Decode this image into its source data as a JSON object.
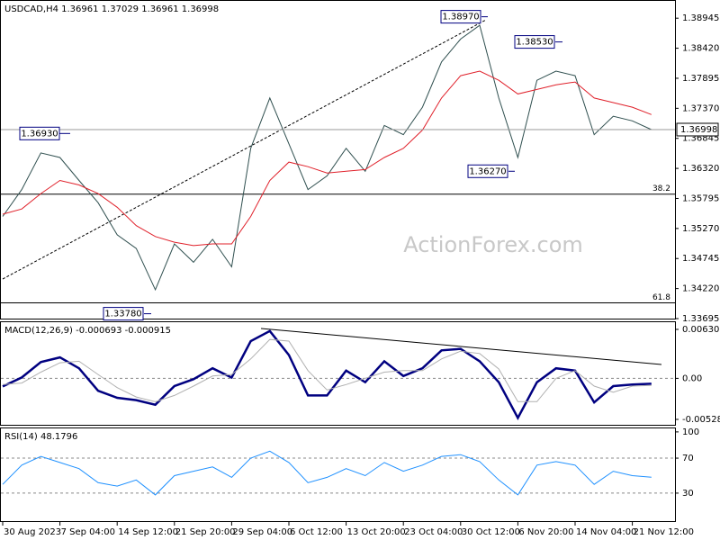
{
  "chart_data": [
    {
      "type": "line",
      "title": "USDCAD,H4",
      "ohlc": [
        1.36961,
        1.37029,
        1.36961,
        1.36998
      ],
      "watermark": "ActionForex.com",
      "series": [
        {
          "color": "#2f4f4f",
          "values": [
            1.3548,
            1.3595,
            1.3659,
            1.3651,
            1.3611,
            1.3572,
            1.3516,
            1.3492,
            1.342,
            1.35,
            1.3468,
            1.3508,
            1.346,
            1.3667,
            1.3755,
            1.3675,
            1.3595,
            1.3619,
            1.3667,
            1.3627,
            1.3707,
            1.3691,
            1.3739,
            1.3818,
            1.3858,
            1.3882,
            1.3755,
            1.3651,
            1.3786,
            1.3802,
            1.3794,
            1.3691,
            1.3723,
            1.3715,
            1.36998
          ]
        },
        {
          "color": "#e0202a",
          "values": [
            1.3552,
            1.3561,
            1.3588,
            1.3611,
            1.3603,
            1.3588,
            1.3564,
            1.3532,
            1.3513,
            1.3503,
            1.3497,
            1.35,
            1.35,
            1.3548,
            1.3611,
            1.3643,
            1.3635,
            1.3624,
            1.3627,
            1.363,
            1.3651,
            1.3667,
            1.3699,
            1.3755,
            1.3794,
            1.3802,
            1.3786,
            1.3762,
            1.377,
            1.3778,
            1.3783,
            1.3755,
            1.3747,
            1.3739,
            1.3726
          ]
        }
      ],
      "current_price": 1.36998,
      "annotations": [
        {
          "value": 1.3693,
          "label": "1.36930"
        },
        {
          "value": 1.3378,
          "label": "1.33780"
        },
        {
          "value": 1.3897,
          "label": "1.38970"
        },
        {
          "value": 1.3853,
          "label": "1.38530"
        },
        {
          "value": 1.3627,
          "label": "1.36270"
        }
      ],
      "fib_levels": [
        {
          "value": 1.3587,
          "label": "38.2"
        },
        {
          "value": 1.3397,
          "label": "61.8"
        }
      ],
      "ylim": [
        1.33695,
        1.39247
      ],
      "yticks": [
        1.38945,
        {
          "value": 1.3842,
          "label": "1.38420"
        },
        1.37895,
        {
          "value": 1.3737,
          "label": "1.37370"
        },
        1.36845,
        {
          "value": 1.3632,
          "label": "1.36320"
        },
        1.35795,
        {
          "value": 1.3527,
          "label": "1.35270"
        },
        1.34745,
        {
          "value": 1.3422,
          "label": "1.34220"
        },
        1.33695
      ]
    },
    {
      "type": "line",
      "title": "MACD(12,26,9)",
      "series": [
        {
          "color": "#000080",
          "values": [
            -0.00104,
            0.00012,
            0.0021,
            0.0027,
            0.0013,
            -0.0016,
            -0.0025,
            -0.0028,
            -0.0034,
            -0.001,
            -0.0001,
            0.0013,
            0.0001,
            0.0048,
            0.0061,
            0.003,
            -0.0022,
            -0.0022,
            0.001,
            -0.0005,
            0.0022,
            0.0003,
            0.0013,
            0.0036,
            0.0038,
            0.0022,
            -0.0005,
            -0.0051,
            -0.0005,
            0.0013,
            0.001,
            -0.0031,
            -0.001,
            -0.0008,
            -0.000693
          ]
        },
        {
          "color": "#b0b0b0",
          "values": [
            -0.0008,
            -0.0006,
            0.0008,
            0.002,
            0.0022,
            0.0005,
            -0.0012,
            -0.0024,
            -0.003,
            -0.0022,
            -0.001,
            0.0003,
            0.0005,
            0.0025,
            0.005,
            0.0048,
            0.001,
            -0.0015,
            -0.0008,
            0,
            0.0008,
            0.001,
            0.001,
            0.0025,
            0.0035,
            0.0032,
            0.0012,
            -0.003,
            -0.003,
            0,
            0.001,
            -0.001,
            -0.0018,
            -0.001,
            -0.000915
          ]
        }
      ],
      "ylim": [
        -0.00598,
        0.00723
      ],
      "yticks": [
        0.006305,
        {
          "value": 0,
          "label": "0.00"
        },
        -0.005283
      ]
    },
    {
      "type": "line",
      "title": "RSI(14)",
      "categories": [
        "30 Aug 2023",
        null,
        null,
        "7 Sep 04:00",
        null,
        null,
        "14 Sep 12:00",
        null,
        null,
        "21 Sep 20:00",
        null,
        null,
        "29 Sep 04:00",
        null,
        null,
        "6 Oct 12:00",
        null,
        null,
        "13 Oct 20:00",
        null,
        null,
        "23 Oct 04:00",
        null,
        null,
        "30 Oct 12:00",
        null,
        null,
        "6 Nov 20:00",
        null,
        null,
        "14 Nov 04:00",
        null,
        null,
        "21 Nov 12:00",
        null
      ],
      "series": [
        {
          "color": "#1e90ff",
          "values": [
            40,
            62,
            72,
            65,
            58,
            42,
            38,
            45,
            28,
            50,
            55,
            60,
            48,
            70,
            78,
            65,
            42,
            48,
            58,
            50,
            65,
            55,
            62,
            72,
            74,
            66,
            45,
            28,
            62,
            66,
            62,
            40,
            55,
            50,
            48.1796
          ]
        }
      ],
      "ylim": [
        -3,
        104
      ],
      "yticks": [
        100,
        70,
        30
      ],
      "dashed_ticks": [
        70,
        30
      ]
    }
  ]
}
